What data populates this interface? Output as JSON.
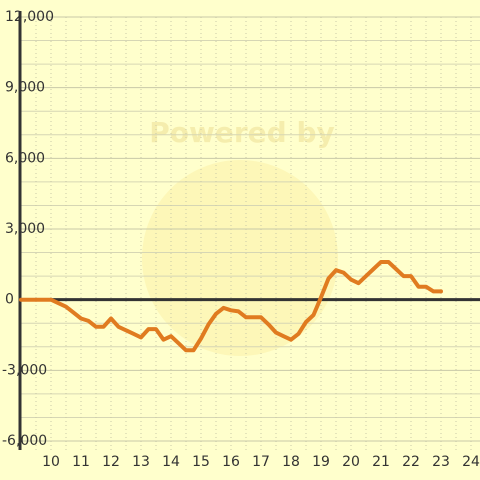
{
  "chart_data": {
    "type": "line",
    "watermark": "Powered by",
    "x": [
      9,
      9.25,
      9.5,
      9.75,
      10,
      10.25,
      10.5,
      10.75,
      11,
      11.25,
      11.5,
      11.75,
      12,
      12.25,
      12.5,
      12.75,
      13,
      13.25,
      13.5,
      13.75,
      14,
      14.25,
      14.5,
      14.75,
      15,
      15.25,
      15.5,
      15.75,
      16,
      16.25,
      16.5,
      16.75,
      17,
      17.25,
      17.5,
      17.75,
      18,
      18.25,
      18.5,
      18.75,
      19,
      19.25,
      19.5,
      19.75,
      20,
      20.25,
      20.5,
      20.75,
      21,
      21.25,
      21.5,
      21.75,
      22,
      22.25,
      22.5,
      22.75,
      23
    ],
    "series": [
      {
        "color": "#e07b20",
        "values": [
          0,
          0,
          0,
          0,
          0,
          -150,
          -300,
          -550,
          -800,
          -900,
          -1150,
          -1150,
          -800,
          -1150,
          -1300,
          -1450,
          -1600,
          -1250,
          -1250,
          -1700,
          -1550,
          -1850,
          -2150,
          -2150,
          -1650,
          -1050,
          -600,
          -350,
          -450,
          -500,
          -750,
          -750,
          -750,
          -1050,
          -1400,
          -1550,
          -1700,
          -1450,
          -950,
          -650,
          100,
          900,
          1250,
          1150,
          850,
          700,
          1000,
          1300,
          1600,
          1600,
          1300,
          1000,
          1000,
          550,
          550,
          350,
          350
        ]
      }
    ],
    "xlim": [
      8.967,
      24.3
    ],
    "ylim": [
      -6000,
      12000
    ],
    "xticks": [
      10,
      11,
      12,
      13,
      14,
      15,
      16,
      17,
      18,
      19,
      20,
      21,
      22,
      23,
      24
    ],
    "xminor_ticks": [
      9.5,
      10.5,
      11.5,
      12.5,
      13.5,
      14.5,
      15.5,
      16.5,
      17.5,
      18.5,
      19.5,
      20.5,
      21.5,
      22.5,
      23.5
    ],
    "yticks": [
      {
        "value": -6000,
        "label": "-6,000"
      },
      {
        "value": -3000,
        "label": "-3,000"
      },
      0,
      {
        "value": 3000,
        "label": "3,000"
      },
      {
        "value": 6000,
        "label": "6,000"
      },
      {
        "value": 9000,
        "label": "9,000"
      },
      {
        "value": 12000,
        "label": "12,000"
      }
    ],
    "yminor_ticks": [
      -5000,
      -4000,
      -2000,
      -1000,
      1000,
      2000,
      4000,
      5000,
      7000,
      8000,
      10000,
      11000
    ],
    "grid": true
  }
}
